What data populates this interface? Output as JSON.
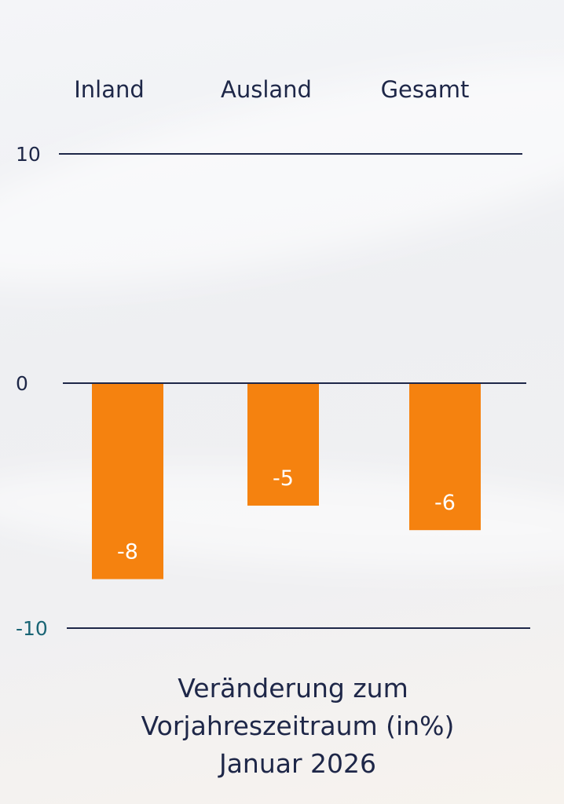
{
  "chart_data": {
    "type": "bar",
    "categories": [
      "Inland",
      "Ausland",
      "Gesamt"
    ],
    "values": [
      -8,
      -5,
      -6
    ],
    "data_labels": [
      "-8",
      "-5",
      "-6"
    ],
    "yticks": [
      {
        "value": 10,
        "label": "10"
      },
      {
        "value": 0,
        "label": "0"
      },
      {
        "value": -10,
        "label": "-10"
      }
    ],
    "ylim": [
      -10,
      10
    ],
    "xlabel_lines": [
      "Veränderung zum",
      "Vorjahreszeitraum (in%)",
      "Januar 2026"
    ],
    "category_position": "top",
    "grid": true,
    "legend": "none",
    "colors": {
      "bar": "#f5820f",
      "gridline": "#1e2748",
      "text": "#1e2748",
      "negative_tick": "#1a6575"
    }
  }
}
